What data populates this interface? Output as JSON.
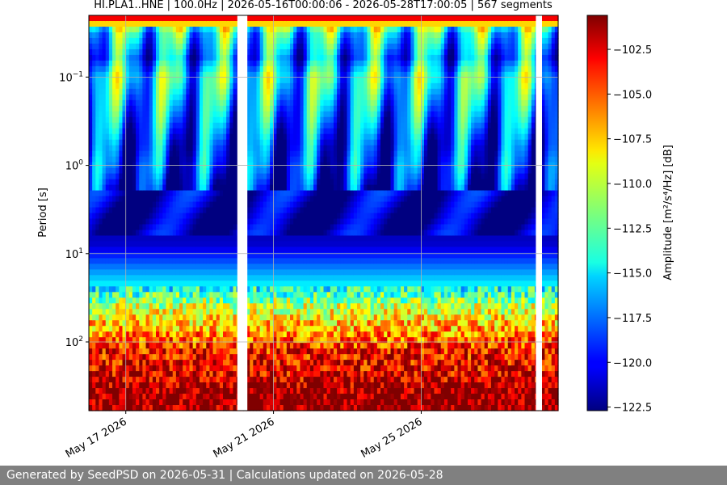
{
  "chart_data": {
    "type": "heatmap",
    "title": "HI.PLA1..HNE | 100.0Hz | 2026-05-16T00:00:06 - 2026-05-28T17:00:05 | 567 segments",
    "ylabel": "Period [s]",
    "xlabel": "",
    "x_range": [
      "2026-05-16T00:00:06",
      "2026-05-28T17:00:05"
    ],
    "x_ticks": [
      {
        "date": "2026-05-17",
        "label": "May 17 2026"
      },
      {
        "date": "2026-05-21",
        "label": "May 21 2026"
      },
      {
        "date": "2026-05-25",
        "label": "May 25 2026"
      }
    ],
    "y_scale": "log",
    "y_inverted": true,
    "y_range_seconds": [
      0.02,
      600
    ],
    "y_ticks": [
      {
        "value": 0.1,
        "base": "10",
        "exp": "−1"
      },
      {
        "value": 1,
        "base": "10",
        "exp": "0"
      },
      {
        "value": 10,
        "base": "10",
        "exp": "1"
      },
      {
        "value": 100,
        "base": "10",
        "exp": "2"
      }
    ],
    "grid": true,
    "colormap": "jet",
    "colorbar": {
      "label": "Amplitude [m²/s⁴/Hz] [dB]",
      "range_db": [
        -122.7,
        -100.6
      ],
      "ticks": [
        "−102.5",
        "−105.0",
        "−107.5",
        "−110.0",
        "−112.5",
        "−115.0",
        "−117.5",
        "−120.0",
        "−122.5"
      ],
      "tick_values": [
        -102.5,
        -105.0,
        -107.5,
        -110.0,
        -112.5,
        -115.0,
        -117.5,
        -120.0,
        -122.5
      ]
    },
    "data_gaps": [
      {
        "start": "2026-05-20T00:30",
        "end": "2026-05-20T07:00"
      },
      {
        "start": "2026-05-28T02:30",
        "end": "2026-05-28T06:30"
      }
    ],
    "level_profile_db": [
      {
        "period": 0.02,
        "db": -100.8
      },
      {
        "period": 0.03,
        "db": -114
      },
      {
        "period": 0.06,
        "db": -117
      },
      {
        "period": 0.1,
        "db": -114
      },
      {
        "period": 0.3,
        "db": -117
      },
      {
        "period": 0.6,
        "db": -119
      },
      {
        "period": 1,
        "db": -119
      },
      {
        "period": 2,
        "db": -121
      },
      {
        "period": 4,
        "db": -122
      },
      {
        "period": 8,
        "db": -121
      },
      {
        "period": 15,
        "db": -117
      },
      {
        "period": 25,
        "db": -114
      },
      {
        "period": 40,
        "db": -110
      },
      {
        "period": 70,
        "db": -107
      },
      {
        "period": 120,
        "db": -104
      },
      {
        "period": 250,
        "db": -102.5
      },
      {
        "period": 400,
        "db": -100.8
      }
    ]
  },
  "footer": {
    "text": "Generated by SeedPSD on 2026-05-31 | Calculations updated on 2026-05-28"
  }
}
